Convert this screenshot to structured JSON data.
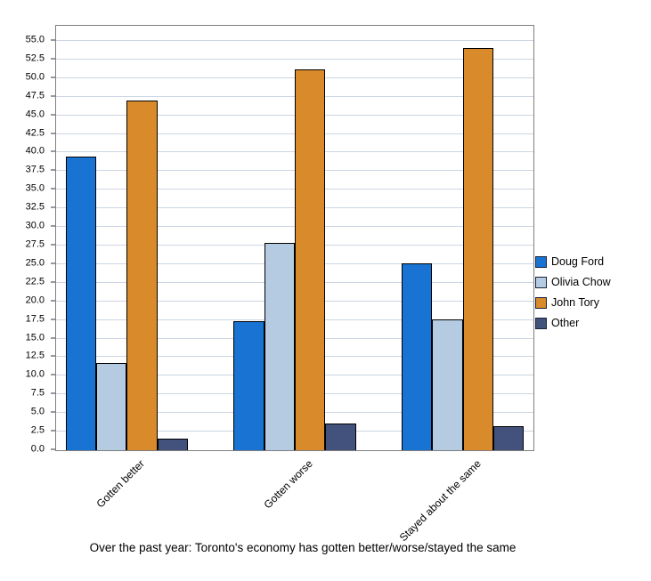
{
  "chart_data": {
    "type": "bar",
    "caption": "Over the past year: Toronto's economy has gotten better/worse/stayed the same",
    "categories": [
      "Gotten better",
      "Gotten worse",
      "Stayed about the same"
    ],
    "series": [
      {
        "name": "Doug Ford",
        "color": "#1873d2",
        "values": [
          39.5,
          17.3,
          25.1
        ]
      },
      {
        "name": "Olivia Chow",
        "color": "#b4cbe1",
        "values": [
          11.7,
          27.9,
          17.6
        ]
      },
      {
        "name": "John Tory",
        "color": "#d98a2b",
        "values": [
          47.0,
          51.2,
          54.1
        ]
      },
      {
        "name": "Other",
        "color": "#42527d",
        "values": [
          1.5,
          3.6,
          3.2
        ]
      }
    ],
    "y_axis": {
      "min": 0,
      "max": 55,
      "step": 2.5,
      "label_format_decimals": 1
    },
    "legend_position": "right",
    "grid": true,
    "colors": {
      "gridline": "#ccd6e3",
      "plot_border": "#7f7f7f",
      "bar_border": "#000000",
      "background": "#ffffff"
    }
  }
}
